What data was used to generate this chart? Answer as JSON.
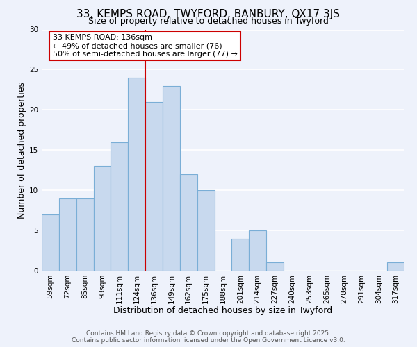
{
  "title": "33, KEMPS ROAD, TWYFORD, BANBURY, OX17 3JS",
  "subtitle": "Size of property relative to detached houses in Twyford",
  "xlabel": "Distribution of detached houses by size in Twyford",
  "ylabel": "Number of detached properties",
  "bar_color": "#c8d9ee",
  "bar_edge_color": "#7aaed6",
  "background_color": "#eef2fb",
  "grid_color": "#ffffff",
  "bins": [
    "59sqm",
    "72sqm",
    "85sqm",
    "98sqm",
    "111sqm",
    "124sqm",
    "136sqm",
    "149sqm",
    "162sqm",
    "175sqm",
    "188sqm",
    "201sqm",
    "214sqm",
    "227sqm",
    "240sqm",
    "253sqm",
    "265sqm",
    "278sqm",
    "291sqm",
    "304sqm",
    "317sqm"
  ],
  "counts": [
    7,
    9,
    9,
    13,
    16,
    24,
    21,
    23,
    12,
    10,
    0,
    4,
    5,
    1,
    0,
    0,
    0,
    0,
    0,
    0,
    1
  ],
  "vline_x": 5.5,
  "vline_color": "#cc0000",
  "annotation_title": "33 KEMPS ROAD: 136sqm",
  "annotation_line1": "← 49% of detached houses are smaller (76)",
  "annotation_line2": "50% of semi-detached houses are larger (77) →",
  "annotation_box_color": "#ffffff",
  "annotation_box_edge": "#cc0000",
  "footer1": "Contains HM Land Registry data © Crown copyright and database right 2025.",
  "footer2": "Contains public sector information licensed under the Open Government Licence v3.0.",
  "ylim": [
    0,
    30
  ],
  "title_fontsize": 11,
  "subtitle_fontsize": 9,
  "axis_label_fontsize": 9,
  "tick_fontsize": 7.5,
  "footer_fontsize": 6.5,
  "annotation_fontsize": 8
}
